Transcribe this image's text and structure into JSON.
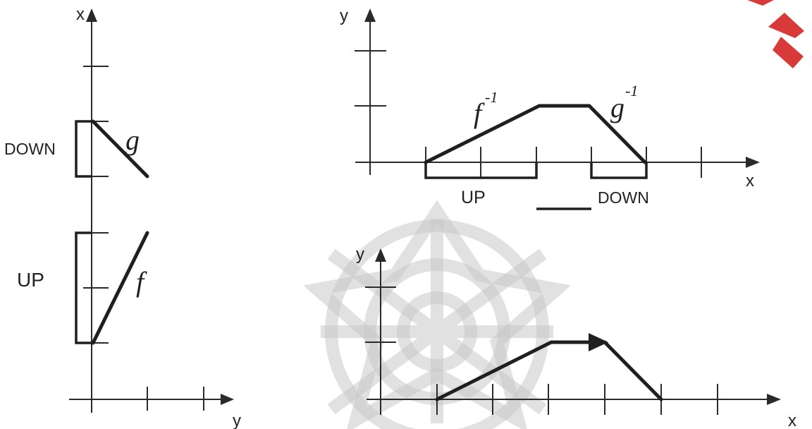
{
  "colors": {
    "ink": "#1f1f1f",
    "watermark": "#c9c9c9",
    "logo_accent": "#d83a3a"
  },
  "left_plot": {
    "vertical_axis_label": "x",
    "horizontal_axis_label": "y",
    "down_label": "DOWN",
    "up_label": "UP",
    "g_label": "g",
    "f_label": "f"
  },
  "top_right_plot": {
    "vertical_axis_label": "y",
    "horizontal_axis_label": "x",
    "f_inverse_base": "f",
    "f_inverse_sup": "-1",
    "g_inverse_base": "g",
    "g_inverse_sup": "-1",
    "up_label": "UP",
    "down_label": "DOWN"
  },
  "bottom_right_plot": {
    "vertical_axis_label": "y",
    "horizontal_axis_label": "x"
  },
  "icons": {
    "watermark": "lattice-rosette-watermark-icon",
    "logo": "red-corner-logo-icon"
  }
}
